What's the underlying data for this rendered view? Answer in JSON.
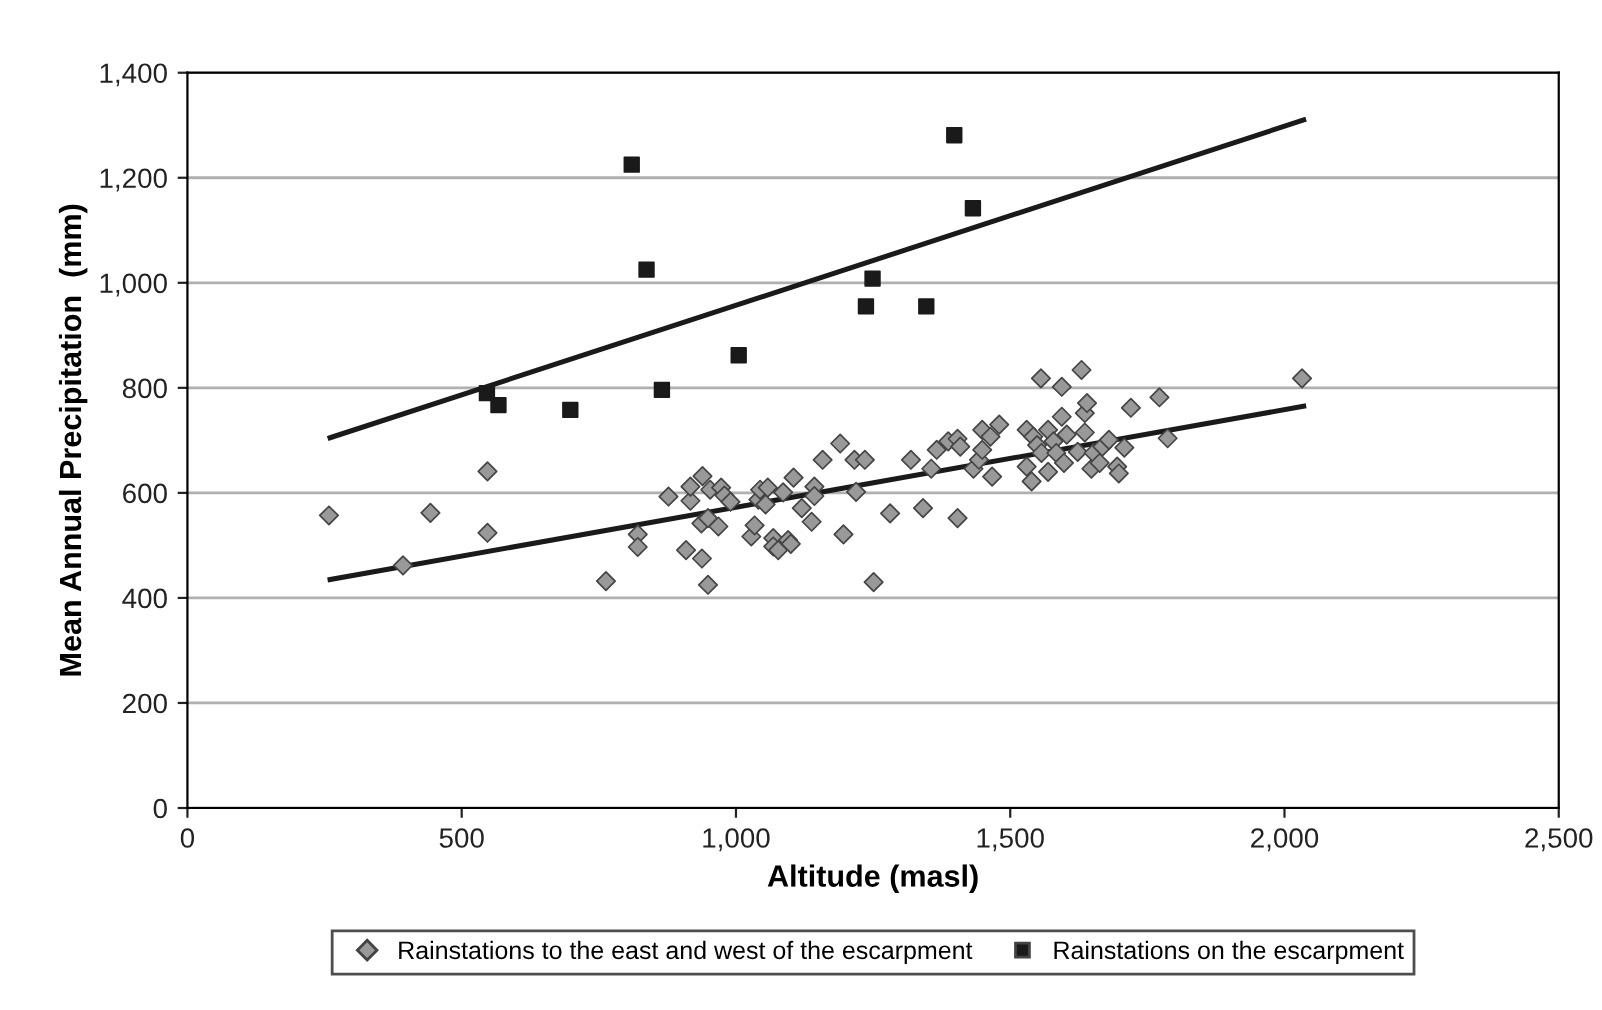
{
  "chart_data": {
    "type": "scatter",
    "xlabel": "Altitude (masl)",
    "ylabel": "Mean Annual Precipitation  (mm)",
    "xlim": [
      0,
      2500
    ],
    "xticks": [
      {
        "value": 0,
        "label": "0"
      },
      {
        "value": 500,
        "label": "500"
      },
      {
        "value": 1000,
        "label": "1,000"
      },
      {
        "value": 1500,
        "label": "1,500"
      },
      {
        "value": 2000,
        "label": "2,000"
      },
      {
        "value": 2500,
        "label": "2,500"
      }
    ],
    "ylim": [
      0,
      1400
    ],
    "yticks": [
      {
        "value": 0,
        "label": "0"
      },
      {
        "value": 200,
        "label": "200"
      },
      {
        "value": 400,
        "label": "400"
      },
      {
        "value": 600,
        "label": "600"
      },
      {
        "value": 800,
        "label": "800"
      },
      {
        "value": 1000,
        "label": "1,000"
      },
      {
        "value": 1200,
        "label": "1,200"
      },
      {
        "value": 1400,
        "label": "1,400"
      }
    ],
    "grid": "y",
    "legend": "bottom",
    "series": [
      {
        "name": "Rainstations to the east and west of the escarpment",
        "marker": "diamond",
        "color": "#999999",
        "x": [
          258,
          393,
          443,
          547,
          547,
          763,
          821,
          821,
          877,
          909,
          917,
          917,
          938,
          939,
          953,
          937,
          949,
          949,
          968,
          973,
          979,
          990,
          1028,
          1034,
          1041,
          1044,
          1054,
          1058,
          1068,
          1068,
          1077,
          1086,
          1095,
          1100,
          1105,
          1120,
          1138,
          1143,
          1143,
          1158,
          1190,
          1196,
          1216,
          1219,
          1235,
          1251,
          1281,
          1319,
          1341,
          1356,
          1366,
          1387,
          1404,
          1409,
          1404,
          1433,
          1443,
          1449,
          1449,
          1464,
          1467,
          1480,
          1530,
          1530,
          1539,
          1542,
          1549,
          1556,
          1557,
          1569,
          1569,
          1579,
          1584,
          1594,
          1594,
          1598,
          1603,
          1623,
          1630,
          1636,
          1640,
          1636,
          1648,
          1652,
          1663,
          1668,
          1680,
          1695,
          1698,
          1708,
          1720,
          1772,
          1787,
          2032
        ],
        "values": [
          557,
          462,
          562,
          641,
          524,
          432,
          521,
          497,
          593,
          491,
          585,
          612,
          475,
          632,
          606,
          542,
          552,
          425,
          536,
          610,
          595,
          583,
          517,
          538,
          587,
          606,
          578,
          610,
          514,
          498,
          491,
          601,
          510,
          503,
          629,
          571,
          545,
          612,
          594,
          663,
          694,
          521,
          663,
          602,
          663,
          430,
          561,
          663,
          571,
          646,
          682,
          698,
          703,
          688,
          552,
          646,
          663,
          720,
          682,
          707,
          631,
          730,
          720,
          650,
          622,
          707,
          691,
          818,
          676,
          720,
          640,
          698,
          676,
          802,
          745,
          657,
          711,
          678,
          834,
          752,
          771,
          715,
          646,
          676,
          657,
          688,
          701,
          650,
          637,
          686,
          762,
          782,
          704,
          818
        ]
      },
      {
        "name": "Rainstations on the escarpment",
        "marker": "square",
        "color": "#1a1a1a",
        "x": [
          546,
          567,
          698,
          865,
          837,
          810,
          1005,
          1237,
          1249,
          1347,
          1398,
          1432
        ],
        "values": [
          790,
          767,
          758,
          796,
          1025,
          1225,
          862,
          955,
          1008,
          955,
          1281,
          1142
        ]
      },
      {
        "type": "line",
        "color": "#1a1a1a",
        "x": [
          260,
          2035
        ],
        "values": [
          705,
          1310
        ]
      },
      {
        "type": "line",
        "color": "#1a1a1a",
        "x": [
          260,
          2035
        ],
        "values": [
          435,
          765
        ]
      }
    ]
  }
}
